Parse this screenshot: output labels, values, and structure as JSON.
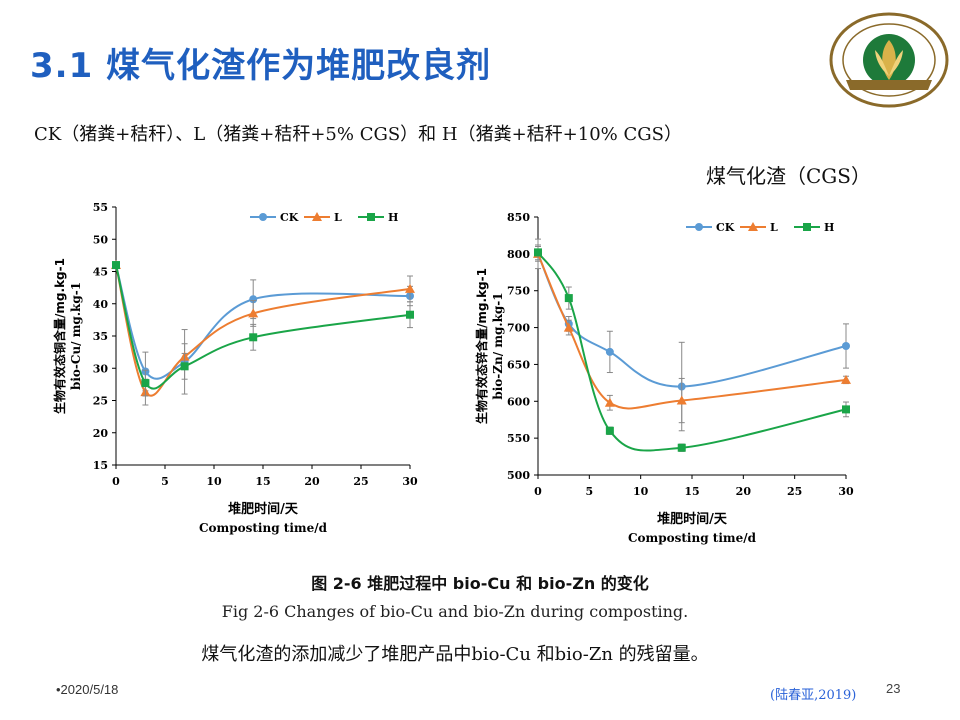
{
  "slide": {
    "title": "3.1 煤气化渣作为堆肥改良剂",
    "subtitle": "CK（猪粪+秸秆）、L（猪粪+秸秆+5% CGS）和 H（猪粪+秸秆+10% CGS）",
    "cgs_label": "煤气化渣（CGS）",
    "caption_zh": "图 2-6  堆肥过程中 bio-Cu 和 bio-Zn 的变化",
    "caption_en": "Fig 2-6 Changes of bio-Cu and bio-Zn during composting.",
    "conclusion": "煤气化渣的添加减少了堆肥产品中bio-Cu 和bio-Zn 的残留量。",
    "date": "•2020/5/18",
    "citation": "(陆春亚,2019)",
    "page": "23",
    "logo_icon": "university-logo-icon"
  },
  "colors": {
    "title": "#1f5fbf",
    "CK": "#5b9bd5",
    "L": "#ed7d31",
    "H": "#1aa548"
  },
  "chart_data": [
    {
      "type": "line",
      "xlabel_zh": "堆肥时间/天",
      "xlabel_en": "Composting time/d",
      "ylabel_zh": "生物有效态铜含量/mg.kg-1",
      "ylabel_en": "bio-Cu/ mg.kg-1",
      "xlim": [
        0,
        30
      ],
      "ylim": [
        15,
        55
      ],
      "xticks": [
        0,
        5,
        10,
        15,
        20,
        25,
        30
      ],
      "yticks": [
        15,
        20,
        25,
        30,
        35,
        40,
        45,
        50,
        55
      ],
      "x": [
        0,
        3,
        7,
        14,
        30
      ],
      "legend_position": "top-right",
      "series": [
        {
          "name": "CK",
          "values": [
            46,
            29.5,
            31,
            40.7,
            41.2
          ],
          "err": [
            0,
            3,
            5,
            3,
            1.5
          ]
        },
        {
          "name": "L",
          "values": [
            46,
            26.3,
            31.8,
            38.5,
            42.3
          ],
          "err": [
            0,
            2,
            2,
            2,
            2
          ]
        },
        {
          "name": "H",
          "values": [
            46,
            27.7,
            30.3,
            34.8,
            38.3
          ],
          "err": [
            0,
            2,
            2,
            2,
            2
          ]
        }
      ]
    },
    {
      "type": "line",
      "xlabel_zh": "堆肥时间/天",
      "xlabel_en": "Composting time/d",
      "ylabel_zh": "生物有效态锌含量/mg.kg-1",
      "ylabel_en": "bio-Zn/ mg.kg-1",
      "xlim": [
        0,
        30
      ],
      "ylim": [
        500,
        850
      ],
      "xticks": [
        0,
        5,
        10,
        15,
        20,
        25,
        30
      ],
      "yticks": [
        500,
        550,
        600,
        650,
        700,
        750,
        800,
        850
      ],
      "x": [
        0,
        3,
        7,
        14,
        30
      ],
      "legend_position": "top-right",
      "series": [
        {
          "name": "CK",
          "values": [
            800,
            705,
            667,
            620,
            675
          ],
          "err": [
            20,
            10,
            28,
            60,
            30
          ]
        },
        {
          "name": "L",
          "values": [
            800,
            700,
            598,
            601,
            629
          ],
          "err": [
            10,
            10,
            10,
            30,
            5
          ]
        },
        {
          "name": "H",
          "values": [
            802,
            740,
            560,
            537,
            589
          ],
          "err": [
            10,
            15,
            5,
            5,
            10
          ]
        }
      ]
    }
  ]
}
